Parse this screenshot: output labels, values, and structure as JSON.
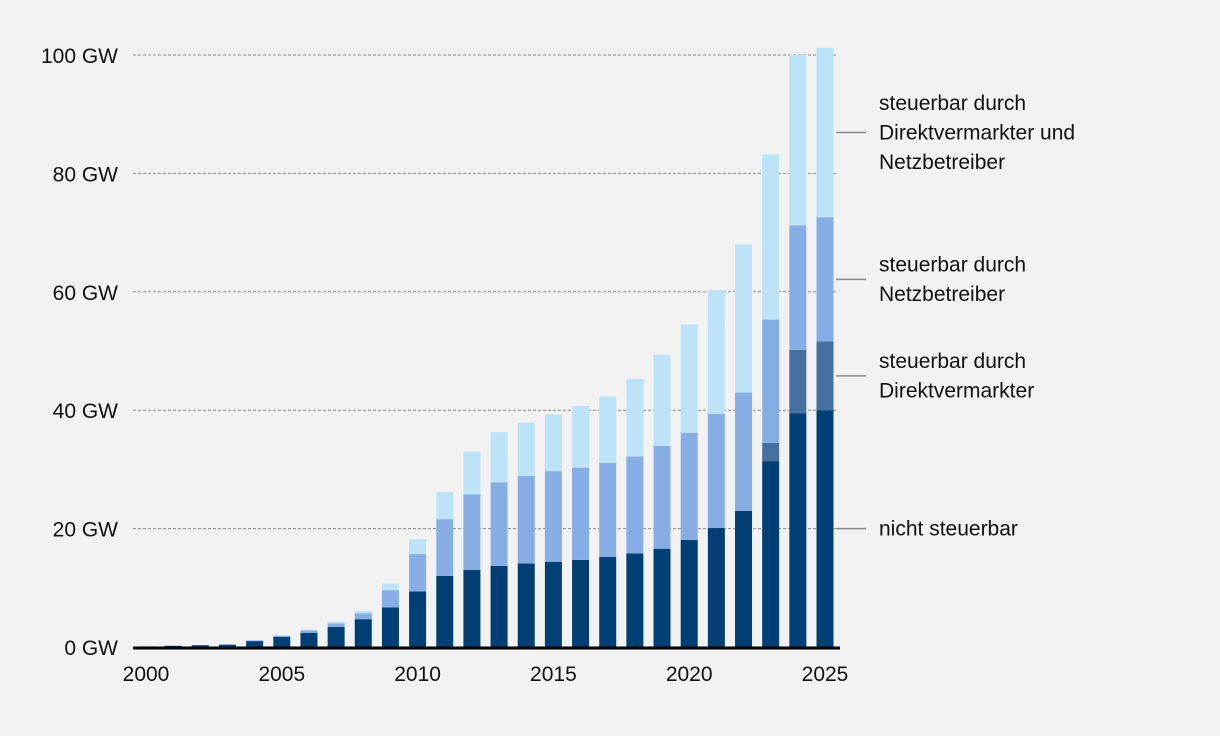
{
  "chart_data": {
    "type": "bar",
    "stacked": true,
    "x": [
      2000,
      2001,
      2002,
      2003,
      2004,
      2005,
      2006,
      2007,
      2008,
      2009,
      2010,
      2011,
      2012,
      2013,
      2014,
      2015,
      2016,
      2017,
      2018,
      2019,
      2020,
      2021,
      2022,
      2023,
      2024,
      2025
    ],
    "series": [
      {
        "name": "nicht steuerbar",
        "color": "#003f73",
        "values": [
          0.1,
          0.2,
          0.3,
          0.4,
          1.0,
          1.7,
          2.4,
          3.4,
          4.7,
          6.7,
          9.4,
          12.0,
          13.0,
          13.7,
          14.1,
          14.4,
          14.7,
          15.2,
          15.8,
          16.6,
          18.1,
          20.1,
          23.0,
          31.4,
          39.5,
          40.0
        ]
      },
      {
        "name": "steuerbar durch Direktvermarkter",
        "color": "#46709f",
        "values": [
          0,
          0,
          0,
          0,
          0,
          0,
          0,
          0,
          0,
          0,
          0,
          0,
          0,
          0,
          0,
          0,
          0,
          0,
          0,
          0,
          0,
          0,
          0,
          3.1,
          10.7,
          11.6
        ]
      },
      {
        "name": "steuerbar durch Netzbetreiber",
        "color": "#86aee4",
        "values": [
          0,
          0,
          0,
          0,
          0.1,
          0.2,
          0.4,
          0.6,
          1.0,
          2.9,
          6.3,
          9.6,
          12.8,
          14.1,
          14.8,
          15.3,
          15.6,
          15.9,
          16.4,
          17.4,
          18.1,
          19.3,
          20.0,
          20.8,
          21.0,
          21.0
        ]
      },
      {
        "name": "steuerbar durch Direktvermarkter und Netzbetreiber",
        "color": "#bde3f9",
        "values": [
          0,
          0,
          0,
          0,
          0.05,
          0.1,
          0.15,
          0.3,
          0.4,
          1.1,
          2.5,
          4.6,
          7.2,
          8.5,
          9.0,
          9.6,
          10.4,
          11.2,
          13.1,
          15.4,
          18.3,
          20.9,
          25.0,
          27.9,
          28.8,
          28.6
        ]
      }
    ],
    "xticks": [
      "2000",
      "2005",
      "2010",
      "2015",
      "2020",
      "2025"
    ],
    "yticks": [
      "0 GW",
      "20 GW",
      "40 GW",
      "60 GW",
      "80 GW",
      "100 GW"
    ],
    "ylim": [
      0,
      100
    ],
    "grid": true,
    "legend": [
      {
        "lines": [
          "steuerbar durch",
          "Direktvermarkter und",
          "Netzbetreiber"
        ],
        "series": 3
      },
      {
        "lines": [
          "steuerbar durch",
          "Netzbetreiber"
        ],
        "series": 2
      },
      {
        "lines": [
          "steuerbar durch",
          "Direktvermarkter"
        ],
        "series": 1
      },
      {
        "lines": [
          "nicht steuerbar"
        ],
        "series": 0
      }
    ]
  }
}
